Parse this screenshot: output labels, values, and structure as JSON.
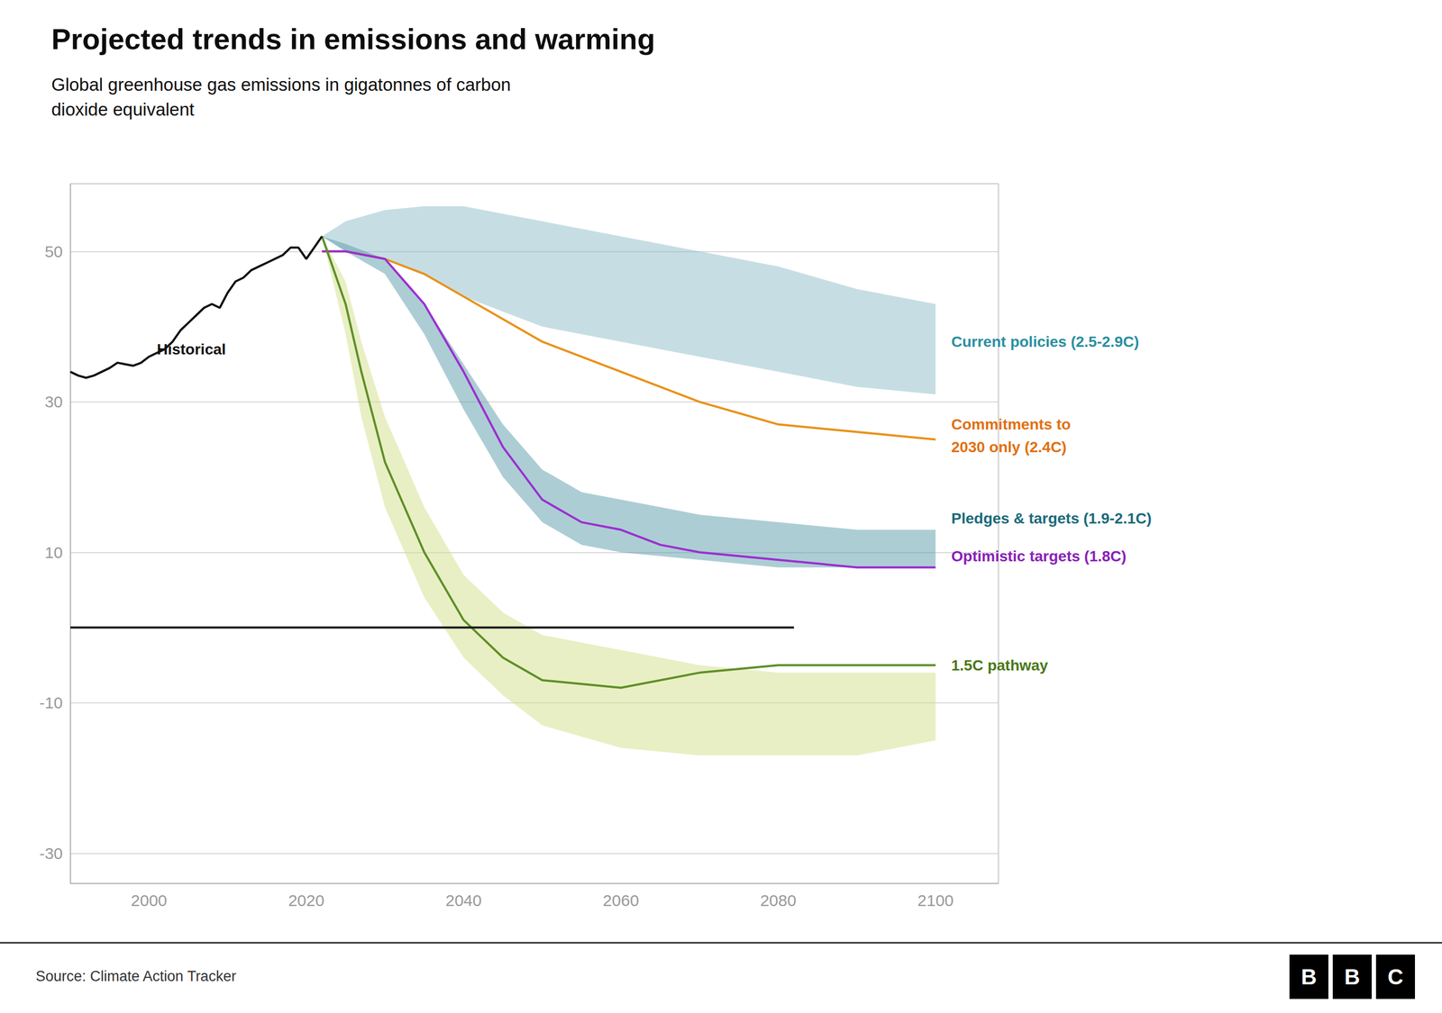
{
  "chart_data": {
    "type": "line",
    "title": "Projected trends in emissions and warming",
    "subtitle": "Global greenhouse gas emissions in gigatonnes of carbon\ndioxide equivalent",
    "source": "Source: Climate Action Tracker",
    "logo": "BBC",
    "xlim": [
      1990,
      2108
    ],
    "ylim": [
      -34,
      59
    ],
    "xticks": [
      2000,
      2020,
      2040,
      2060,
      2080,
      2100
    ],
    "yticks": [
      -30,
      -10,
      10,
      30,
      50
    ],
    "grid": true,
    "series": [
      {
        "type": "band",
        "color": "#d4e08a",
        "x": [
          2022,
          2025,
          2027,
          2030,
          2035,
          2040,
          2045,
          2050,
          2060,
          2070,
          2080,
          2090,
          2100
        ],
        "lower": [
          52,
          39,
          28,
          16,
          4,
          -4,
          -9,
          -13,
          -16,
          -17,
          -17,
          -17,
          -15
        ],
        "upper": [
          52,
          46,
          38,
          28,
          16,
          7,
          2,
          -1,
          -3,
          -5,
          -6,
          -6,
          -6
        ]
      },
      {
        "type": "band",
        "color": "#8dbec8",
        "x": [
          2022,
          2025,
          2030,
          2035,
          2040,
          2045,
          2050,
          2060,
          2070,
          2080,
          2090,
          2100
        ],
        "lower": [
          52,
          50,
          49,
          47,
          44,
          42,
          40,
          38,
          36,
          34,
          32,
          31
        ],
        "upper": [
          52,
          54,
          55.5,
          56,
          56,
          55,
          54,
          52,
          50,
          48,
          45,
          43
        ]
      },
      {
        "type": "band",
        "color": "#5b9caa",
        "x": [
          2022,
          2025,
          2030,
          2035,
          2040,
          2045,
          2050,
          2055,
          2060,
          2070,
          2080,
          2090,
          2100
        ],
        "lower": [
          52,
          50,
          47,
          39,
          29,
          20,
          14,
          11,
          10,
          9,
          8,
          8,
          8
        ],
        "upper": [
          52,
          51,
          49,
          43,
          35,
          27,
          21,
          18,
          17,
          15,
          14,
          13,
          13
        ]
      },
      {
        "type": "line",
        "color": "#e8921a",
        "x": [
          2022,
          2025,
          2030,
          2035,
          2040,
          2050,
          2060,
          2070,
          2080,
          2090,
          2100
        ],
        "values": [
          50,
          50,
          49,
          47,
          44,
          38,
          34,
          30,
          27,
          26,
          25
        ]
      },
      {
        "type": "line",
        "color": "#9b2fd0",
        "x": [
          2022,
          2025,
          2030,
          2035,
          2040,
          2045,
          2050,
          2055,
          2060,
          2065,
          2070,
          2080,
          2090,
          2100
        ],
        "values": [
          50,
          50,
          49,
          43,
          34,
          24,
          17,
          14,
          13,
          11,
          10,
          9,
          8,
          8
        ]
      },
      {
        "type": "line",
        "color": "#5e8f28",
        "x": [
          2022,
          2025,
          2027,
          2030,
          2035,
          2040,
          2045,
          2050,
          2060,
          2070,
          2080,
          2090,
          2100
        ],
        "values": [
          52,
          43,
          34,
          22,
          10,
          1,
          -4,
          -7,
          -8,
          -6,
          -5,
          -5,
          -5
        ]
      },
      {
        "type": "line",
        "color": "#111111",
        "x": [
          1990,
          1991,
          1992,
          1993,
          1994,
          1995,
          1996,
          1997,
          1998,
          1999,
          2000,
          2001,
          2002,
          2003,
          2004,
          2005,
          2006,
          2007,
          2008,
          2009,
          2010,
          2011,
          2012,
          2013,
          2014,
          2015,
          2016,
          2017,
          2018,
          2019,
          2020,
          2021,
          2022
        ],
        "values": [
          34.0,
          33.5,
          33.2,
          33.5,
          34.0,
          34.5,
          35.2,
          35.0,
          34.8,
          35.2,
          36.0,
          36.5,
          37.0,
          38.0,
          39.5,
          40.5,
          41.5,
          42.5,
          43.0,
          42.5,
          44.5,
          46.0,
          46.5,
          47.5,
          48.0,
          48.5,
          49.0,
          49.5,
          50.5,
          50.5,
          49.0,
          50.5,
          52.0
        ]
      },
      {
        "type": "line",
        "color": "#1a1a1a",
        "x": [
          1990,
          2082
        ],
        "values": [
          0,
          0
        ]
      }
    ],
    "annotations": [
      {
        "text": "Current policies (2.5-2.9C)",
        "x": 2102,
        "y": 38,
        "color": "#2a8fa0"
      },
      {
        "text": "Commitments to",
        "x": 2102,
        "y": 27,
        "color": "#e07010"
      },
      {
        "text": "2030 only (2.4C)",
        "x": 2102,
        "y": 24,
        "color": "#e07010"
      },
      {
        "text": "Pledges & targets (1.9-2.1C)",
        "x": 2102,
        "y": 14.5,
        "color": "#1a6a7a"
      },
      {
        "text": "Optimistic targets (1.8C)",
        "x": 2102,
        "y": 9.5,
        "color": "#8820b8"
      },
      {
        "text": "1.5C pathway",
        "x": 2102,
        "y": -5,
        "color": "#4a7818"
      },
      {
        "text": "Historical",
        "x": 2001,
        "y": 37,
        "color": "#111111"
      }
    ]
  }
}
